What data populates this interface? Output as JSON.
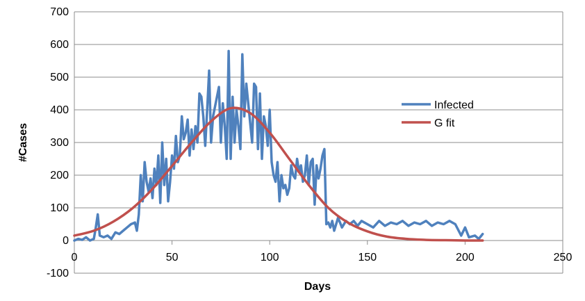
{
  "chart_data": {
    "type": "line",
    "title": "",
    "xlabel": "Days",
    "ylabel": "#Cases",
    "xlim": [
      0,
      250
    ],
    "ylim": [
      -100,
      700
    ],
    "x_ticks": [
      "0",
      "50",
      "100",
      "150",
      "200",
      "250"
    ],
    "y_ticks": [
      "-100",
      "0",
      "100",
      "200",
      "300",
      "400",
      "500",
      "600",
      "700"
    ],
    "grid": true,
    "legend_position": "right",
    "series": [
      {
        "name": "Infected",
        "color": "#4F81BD",
        "x": [
          0,
          2,
          4,
          6,
          8,
          10,
          11,
          12,
          13,
          15,
          17,
          19,
          21,
          23,
          25,
          27,
          29,
          31,
          32,
          33,
          34,
          35,
          36,
          37,
          38,
          39,
          40,
          41,
          42,
          43,
          44,
          45,
          46,
          47,
          48,
          49,
          50,
          51,
          52,
          53,
          54,
          55,
          56,
          57,
          58,
          59,
          60,
          61,
          62,
          63,
          64,
          65,
          66,
          67,
          68,
          69,
          70,
          71,
          72,
          73,
          74,
          75,
          76,
          77,
          78,
          79,
          80,
          81,
          82,
          83,
          84,
          85,
          86,
          87,
          88,
          89,
          90,
          91,
          92,
          93,
          94,
          95,
          96,
          97,
          98,
          99,
          100,
          101,
          102,
          103,
          104,
          105,
          106,
          107,
          108,
          109,
          110,
          111,
          112,
          113,
          114,
          115,
          116,
          117,
          118,
          119,
          120,
          121,
          122,
          123,
          124,
          125,
          126,
          127,
          128,
          129,
          130,
          131,
          132,
          133,
          135,
          137,
          139,
          141,
          143,
          145,
          147,
          150,
          153,
          156,
          159,
          162,
          165,
          168,
          171,
          174,
          177,
          180,
          183,
          186,
          189,
          192,
          195,
          198,
          200,
          202,
          205,
          207,
          209
        ],
        "y": [
          0,
          5,
          2,
          10,
          0,
          5,
          40,
          80,
          15,
          10,
          15,
          5,
          25,
          20,
          30,
          40,
          50,
          55,
          30,
          80,
          200,
          120,
          240,
          180,
          150,
          190,
          130,
          220,
          170,
          260,
          115,
          300,
          170,
          250,
          120,
          180,
          260,
          220,
          320,
          240,
          260,
          380,
          310,
          330,
          370,
          260,
          340,
          280,
          350,
          300,
          450,
          440,
          380,
          290,
          400,
          520,
          300,
          380,
          410,
          440,
          470,
          300,
          420,
          350,
          250,
          580,
          250,
          440,
          300,
          400,
          350,
          280,
          570,
          380,
          480,
          420,
          360,
          300,
          480,
          470,
          280,
          450,
          250,
          380,
          350,
          290,
          400,
          240,
          200,
          180,
          240,
          120,
          200,
          160,
          170,
          140,
          160,
          230,
          200,
          190,
          250,
          210,
          230,
          180,
          200,
          260,
          170,
          240,
          250,
          110,
          230,
          190,
          220,
          260,
          280,
          50,
          55,
          40,
          60,
          30,
          70,
          40,
          60,
          50,
          60,
          45,
          60,
          50,
          40,
          60,
          45,
          55,
          50,
          60,
          45,
          55,
          50,
          60,
          45,
          55,
          50,
          60,
          50,
          15,
          40,
          10,
          15,
          5,
          20
        ]
      },
      {
        "name": "G fit",
        "color": "#C0504D",
        "x": [
          0,
          10,
          20,
          30,
          40,
          50,
          60,
          70,
          80,
          90,
          100,
          110,
          120,
          130,
          140,
          150,
          160,
          170,
          180,
          190,
          200,
          209
        ],
        "y": [
          15,
          30,
          58,
          100,
          158,
          228,
          300,
          365,
          405,
          390,
          330,
          250,
          170,
          100,
          55,
          28,
          12,
          5,
          2,
          1,
          0,
          0
        ]
      }
    ]
  }
}
